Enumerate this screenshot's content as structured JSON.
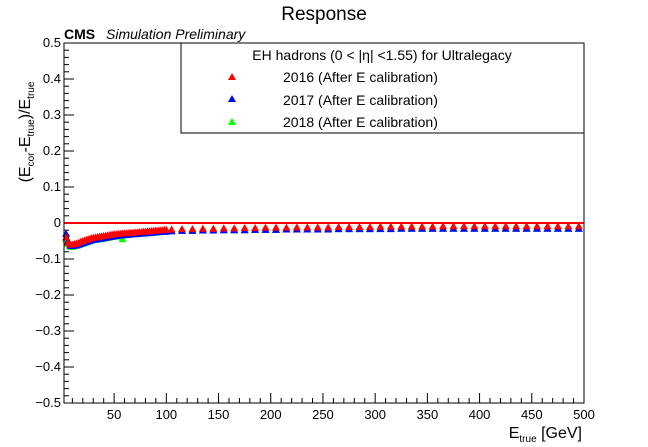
{
  "title": "Response",
  "cms_label": "CMS",
  "cms_sublabel": "Simulation Preliminary",
  "legend_header": "EH hadrons (0 < |η| <1.55) for Ultralegacy",
  "x_title": {
    "main": "E",
    "sub": "true",
    "unit": " [GeV]"
  },
  "y_title": {
    "p1": "(E",
    "s1": "cor",
    "p2": "-E",
    "s2": "true",
    "p3": ")/E",
    "s3": "true"
  },
  "colors": {
    "s2016": "#ff0000",
    "s2017": "#0000ff",
    "s2018": "#00ff00",
    "ref_line": "#ff0000"
  },
  "chart_data": {
    "type": "scatter",
    "marker": "triangle",
    "xlim": [
      2,
      500
    ],
    "ylim": [
      -0.5,
      0.5
    ],
    "x_ticks": [
      50,
      100,
      150,
      200,
      250,
      300,
      350,
      400,
      450,
      500
    ],
    "y_ticks": [
      -0.5,
      -0.4,
      -0.3,
      -0.2,
      -0.1,
      0,
      0.1,
      0.2,
      0.3,
      0.4,
      0.5
    ],
    "reference_line": 0,
    "legend_position": "top-right",
    "series": [
      {
        "name": "2016 (After E calibration)",
        "color": "#ff0000",
        "points": [
          [
            4,
            -0.04
          ],
          [
            6,
            -0.055
          ],
          [
            8,
            -0.06
          ],
          [
            10,
            -0.06
          ],
          [
            12,
            -0.058
          ],
          [
            14,
            -0.057
          ],
          [
            16,
            -0.055
          ],
          [
            18,
            -0.052
          ],
          [
            20,
            -0.05
          ],
          [
            22,
            -0.048
          ],
          [
            24,
            -0.046
          ],
          [
            26,
            -0.044
          ],
          [
            28,
            -0.042
          ],
          [
            30,
            -0.041
          ],
          [
            32,
            -0.04
          ],
          [
            34,
            -0.039
          ],
          [
            36,
            -0.038
          ],
          [
            38,
            -0.037
          ],
          [
            40,
            -0.036
          ],
          [
            42,
            -0.035
          ],
          [
            44,
            -0.034
          ],
          [
            46,
            -0.033
          ],
          [
            48,
            -0.032
          ],
          [
            50,
            -0.031
          ],
          [
            52,
            -0.031
          ],
          [
            54,
            -0.03
          ],
          [
            56,
            -0.03
          ],
          [
            58,
            -0.029
          ],
          [
            60,
            -0.029
          ],
          [
            62,
            -0.028
          ],
          [
            64,
            -0.028
          ],
          [
            66,
            -0.027
          ],
          [
            68,
            -0.027
          ],
          [
            70,
            -0.026
          ],
          [
            72,
            -0.026
          ],
          [
            74,
            -0.025
          ],
          [
            76,
            -0.025
          ],
          [
            78,
            -0.024
          ],
          [
            80,
            -0.024
          ],
          [
            82,
            -0.023
          ],
          [
            84,
            -0.023
          ],
          [
            86,
            -0.022
          ],
          [
            88,
            -0.022
          ],
          [
            90,
            -0.021
          ],
          [
            92,
            -0.021
          ],
          [
            94,
            -0.02
          ],
          [
            96,
            -0.02
          ],
          [
            98,
            -0.019
          ],
          [
            100,
            -0.019
          ],
          [
            105,
            -0.018
          ],
          [
            115,
            -0.017
          ],
          [
            125,
            -0.017
          ],
          [
            135,
            -0.016
          ],
          [
            145,
            -0.016
          ],
          [
            155,
            -0.015
          ],
          [
            165,
            -0.015
          ],
          [
            175,
            -0.014
          ],
          [
            185,
            -0.014
          ],
          [
            195,
            -0.013
          ],
          [
            205,
            -0.013
          ],
          [
            215,
            -0.013
          ],
          [
            225,
            -0.012
          ],
          [
            235,
            -0.012
          ],
          [
            245,
            -0.012
          ],
          [
            255,
            -0.012
          ],
          [
            265,
            -0.011
          ],
          [
            275,
            -0.011
          ],
          [
            285,
            -0.011
          ],
          [
            295,
            -0.011
          ],
          [
            305,
            -0.01
          ],
          [
            315,
            -0.01
          ],
          [
            325,
            -0.01
          ],
          [
            335,
            -0.01
          ],
          [
            345,
            -0.01
          ],
          [
            355,
            -0.01
          ],
          [
            365,
            -0.009
          ],
          [
            375,
            -0.009
          ],
          [
            385,
            -0.009
          ],
          [
            395,
            -0.009
          ],
          [
            405,
            -0.009
          ],
          [
            415,
            -0.009
          ],
          [
            425,
            -0.009
          ],
          [
            435,
            -0.009
          ],
          [
            445,
            -0.009
          ],
          [
            455,
            -0.009
          ],
          [
            465,
            -0.009
          ],
          [
            475,
            -0.009
          ],
          [
            485,
            -0.009
          ],
          [
            495,
            -0.009
          ]
        ]
      },
      {
        "name": "2017 (After E calibration)",
        "color": "#0000ff",
        "points": [
          [
            4,
            -0.03
          ],
          [
            6,
            -0.05
          ],
          [
            8,
            -0.062
          ],
          [
            10,
            -0.064
          ],
          [
            12,
            -0.063
          ],
          [
            14,
            -0.062
          ],
          [
            16,
            -0.06
          ],
          [
            18,
            -0.058
          ],
          [
            20,
            -0.056
          ],
          [
            22,
            -0.054
          ],
          [
            24,
            -0.052
          ],
          [
            26,
            -0.05
          ],
          [
            28,
            -0.048
          ],
          [
            30,
            -0.047
          ],
          [
            32,
            -0.046
          ],
          [
            34,
            -0.045
          ],
          [
            36,
            -0.044
          ],
          [
            38,
            -0.043
          ],
          [
            40,
            -0.042
          ],
          [
            42,
            -0.041
          ],
          [
            44,
            -0.04
          ],
          [
            46,
            -0.039
          ],
          [
            48,
            -0.038
          ],
          [
            50,
            -0.037
          ],
          [
            52,
            -0.036
          ],
          [
            54,
            -0.035
          ],
          [
            56,
            -0.034
          ],
          [
            58,
            -0.034
          ],
          [
            60,
            -0.033
          ],
          [
            62,
            -0.033
          ],
          [
            64,
            -0.032
          ],
          [
            66,
            -0.032
          ],
          [
            68,
            -0.031
          ],
          [
            70,
            -0.031
          ],
          [
            72,
            -0.03
          ],
          [
            74,
            -0.03
          ],
          [
            76,
            -0.029
          ],
          [
            78,
            -0.029
          ],
          [
            80,
            -0.028
          ],
          [
            82,
            -0.028
          ],
          [
            84,
            -0.027
          ],
          [
            86,
            -0.027
          ],
          [
            88,
            -0.026
          ],
          [
            90,
            -0.026
          ],
          [
            92,
            -0.025
          ],
          [
            94,
            -0.025
          ],
          [
            96,
            -0.024
          ],
          [
            98,
            -0.024
          ],
          [
            100,
            -0.024
          ],
          [
            105,
            -0.023
          ],
          [
            115,
            -0.022
          ],
          [
            125,
            -0.022
          ],
          [
            135,
            -0.021
          ],
          [
            145,
            -0.021
          ],
          [
            155,
            -0.02
          ],
          [
            165,
            -0.02
          ],
          [
            175,
            -0.02
          ],
          [
            185,
            -0.019
          ],
          [
            195,
            -0.019
          ],
          [
            205,
            -0.019
          ],
          [
            215,
            -0.018
          ],
          [
            225,
            -0.018
          ],
          [
            235,
            -0.018
          ],
          [
            245,
            -0.018
          ],
          [
            255,
            -0.018
          ],
          [
            265,
            -0.017
          ],
          [
            275,
            -0.017
          ],
          [
            285,
            -0.017
          ],
          [
            295,
            -0.017
          ],
          [
            305,
            -0.017
          ],
          [
            315,
            -0.017
          ],
          [
            325,
            -0.016
          ],
          [
            335,
            -0.016
          ],
          [
            345,
            -0.016
          ],
          [
            355,
            -0.016
          ],
          [
            365,
            -0.016
          ],
          [
            375,
            -0.016
          ],
          [
            385,
            -0.016
          ],
          [
            395,
            -0.016
          ],
          [
            405,
            -0.016
          ],
          [
            415,
            -0.016
          ],
          [
            425,
            -0.016
          ],
          [
            435,
            -0.016
          ],
          [
            445,
            -0.016
          ],
          [
            455,
            -0.016
          ],
          [
            465,
            -0.016
          ],
          [
            475,
            -0.016
          ],
          [
            485,
            -0.016
          ],
          [
            495,
            -0.016
          ]
        ]
      },
      {
        "name": "2018 (After E calibration)",
        "color": "#00ff00",
        "points": [
          [
            4,
            -0.045
          ],
          [
            6,
            -0.058
          ],
          [
            8,
            -0.066
          ],
          [
            10,
            -0.066
          ],
          [
            12,
            -0.064
          ],
          [
            14,
            -0.063
          ],
          [
            16,
            -0.061
          ],
          [
            18,
            -0.059
          ],
          [
            20,
            -0.057
          ],
          [
            22,
            -0.055
          ],
          [
            24,
            -0.053
          ],
          [
            26,
            -0.051
          ],
          [
            28,
            -0.049
          ],
          [
            30,
            -0.048
          ],
          [
            32,
            -0.047
          ],
          [
            34,
            -0.046
          ],
          [
            36,
            -0.045
          ],
          [
            38,
            -0.044
          ],
          [
            40,
            -0.043
          ],
          [
            42,
            -0.042
          ],
          [
            44,
            -0.041
          ],
          [
            46,
            -0.04
          ],
          [
            48,
            -0.039
          ],
          [
            50,
            -0.038
          ],
          [
            52,
            -0.037
          ],
          [
            54,
            -0.036
          ],
          [
            56,
            -0.035
          ],
          [
            58,
            -0.045
          ],
          [
            60,
            -0.034
          ],
          [
            62,
            -0.033
          ],
          [
            64,
            -0.033
          ],
          [
            66,
            -0.032
          ],
          [
            68,
            -0.032
          ],
          [
            70,
            -0.031
          ],
          [
            72,
            -0.031
          ],
          [
            74,
            -0.03
          ],
          [
            76,
            -0.03
          ],
          [
            78,
            -0.029
          ],
          [
            80,
            -0.029
          ],
          [
            82,
            -0.028
          ],
          [
            84,
            -0.028
          ],
          [
            86,
            -0.027
          ],
          [
            88,
            -0.027
          ],
          [
            90,
            -0.026
          ],
          [
            92,
            -0.026
          ],
          [
            94,
            -0.025
          ],
          [
            96,
            -0.025
          ],
          [
            98,
            -0.024
          ],
          [
            100,
            -0.024
          ],
          [
            105,
            -0.023
          ],
          [
            115,
            -0.022
          ],
          [
            125,
            -0.022
          ],
          [
            135,
            -0.021
          ],
          [
            145,
            -0.021
          ],
          [
            155,
            -0.02
          ],
          [
            165,
            -0.02
          ],
          [
            175,
            -0.02
          ],
          [
            185,
            -0.019
          ],
          [
            195,
            -0.019
          ],
          [
            205,
            -0.019
          ],
          [
            215,
            -0.018
          ],
          [
            225,
            -0.018
          ],
          [
            235,
            -0.018
          ],
          [
            245,
            -0.018
          ],
          [
            255,
            -0.017
          ],
          [
            265,
            -0.017
          ],
          [
            275,
            -0.017
          ],
          [
            285,
            -0.017
          ],
          [
            295,
            -0.017
          ],
          [
            305,
            -0.016
          ],
          [
            315,
            -0.016
          ],
          [
            325,
            -0.016
          ],
          [
            335,
            -0.016
          ],
          [
            345,
            -0.016
          ],
          [
            355,
            -0.016
          ],
          [
            365,
            -0.016
          ],
          [
            375,
            -0.016
          ],
          [
            385,
            -0.016
          ],
          [
            395,
            -0.016
          ],
          [
            405,
            -0.016
          ],
          [
            415,
            -0.016
          ],
          [
            425,
            -0.016
          ],
          [
            435,
            -0.016
          ],
          [
            445,
            -0.016
          ],
          [
            455,
            -0.016
          ],
          [
            465,
            -0.016
          ],
          [
            475,
            -0.016
          ],
          [
            485,
            -0.016
          ],
          [
            495,
            -0.016
          ]
        ]
      }
    ]
  }
}
